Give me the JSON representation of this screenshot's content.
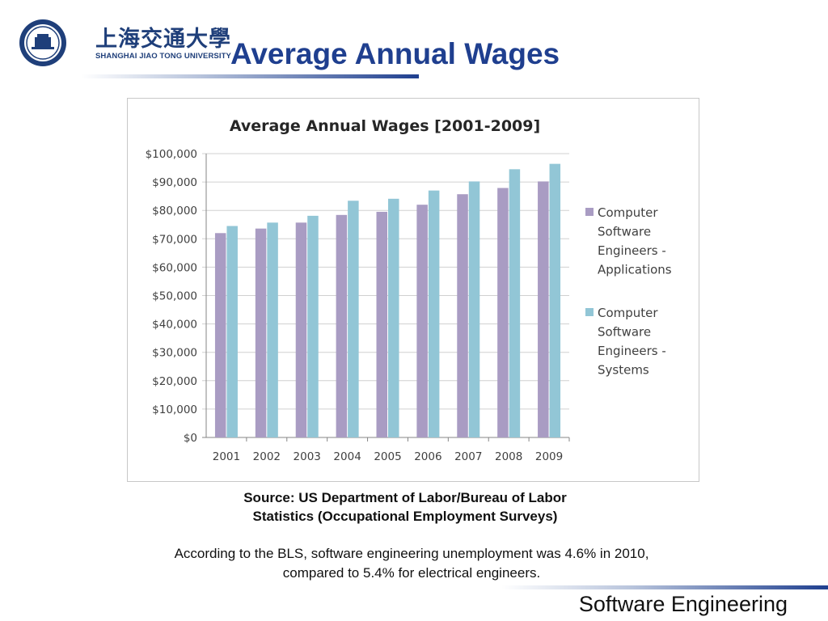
{
  "header": {
    "logo_cn": "上海交通大學",
    "logo_en": "SHANGHAI JIAO TONG UNIVERSITY",
    "title": "Average Annual Wages"
  },
  "chart_data": {
    "type": "bar",
    "title": "Average Annual Wages [2001-2009]",
    "categories": [
      "2001",
      "2002",
      "2003",
      "2004",
      "2005",
      "2006",
      "2007",
      "2008",
      "2009"
    ],
    "series": [
      {
        "name": "Computer Software Engineers - Applications",
        "color": "#a99cc3",
        "values": [
          72000,
          73600,
          75700,
          78400,
          79500,
          82000,
          85700,
          87900,
          90200
        ]
      },
      {
        "name": "Computer Software Engineers - Systems",
        "color": "#92c6d6",
        "values": [
          74500,
          75700,
          78100,
          83400,
          84100,
          87000,
          90200,
          94500,
          96400
        ]
      }
    ],
    "ylim": [
      0,
      100000
    ],
    "yticks": [
      "$0",
      "$10,000",
      "$20,000",
      "$30,000",
      "$40,000",
      "$50,000",
      "$60,000",
      "$70,000",
      "$80,000",
      "$90,000",
      "$100,000"
    ],
    "grid": true,
    "legend_position": "right",
    "legend_lines": [
      [
        "Computer",
        "Software",
        "Engineers -",
        "Applications"
      ],
      [
        "Computer",
        "Software",
        "Engineers -",
        "Systems"
      ]
    ],
    "xlabel": "",
    "ylabel": ""
  },
  "source": {
    "line1": "Source: US Department of Labor/Bureau of Labor",
    "line2": "Statistics (Occupational Employment Surveys)"
  },
  "note": {
    "line1": "According to the BLS, software engineering unemployment was 4.6% in 2010,",
    "line2": "compared to 5.4% for electrical engineers."
  },
  "footer": {
    "text": "Software Engineering"
  },
  "colors": {
    "title": "#1f3f8f",
    "logo": "#1f3f7a"
  },
  "icons": {
    "logo": "university-seal-icon"
  }
}
